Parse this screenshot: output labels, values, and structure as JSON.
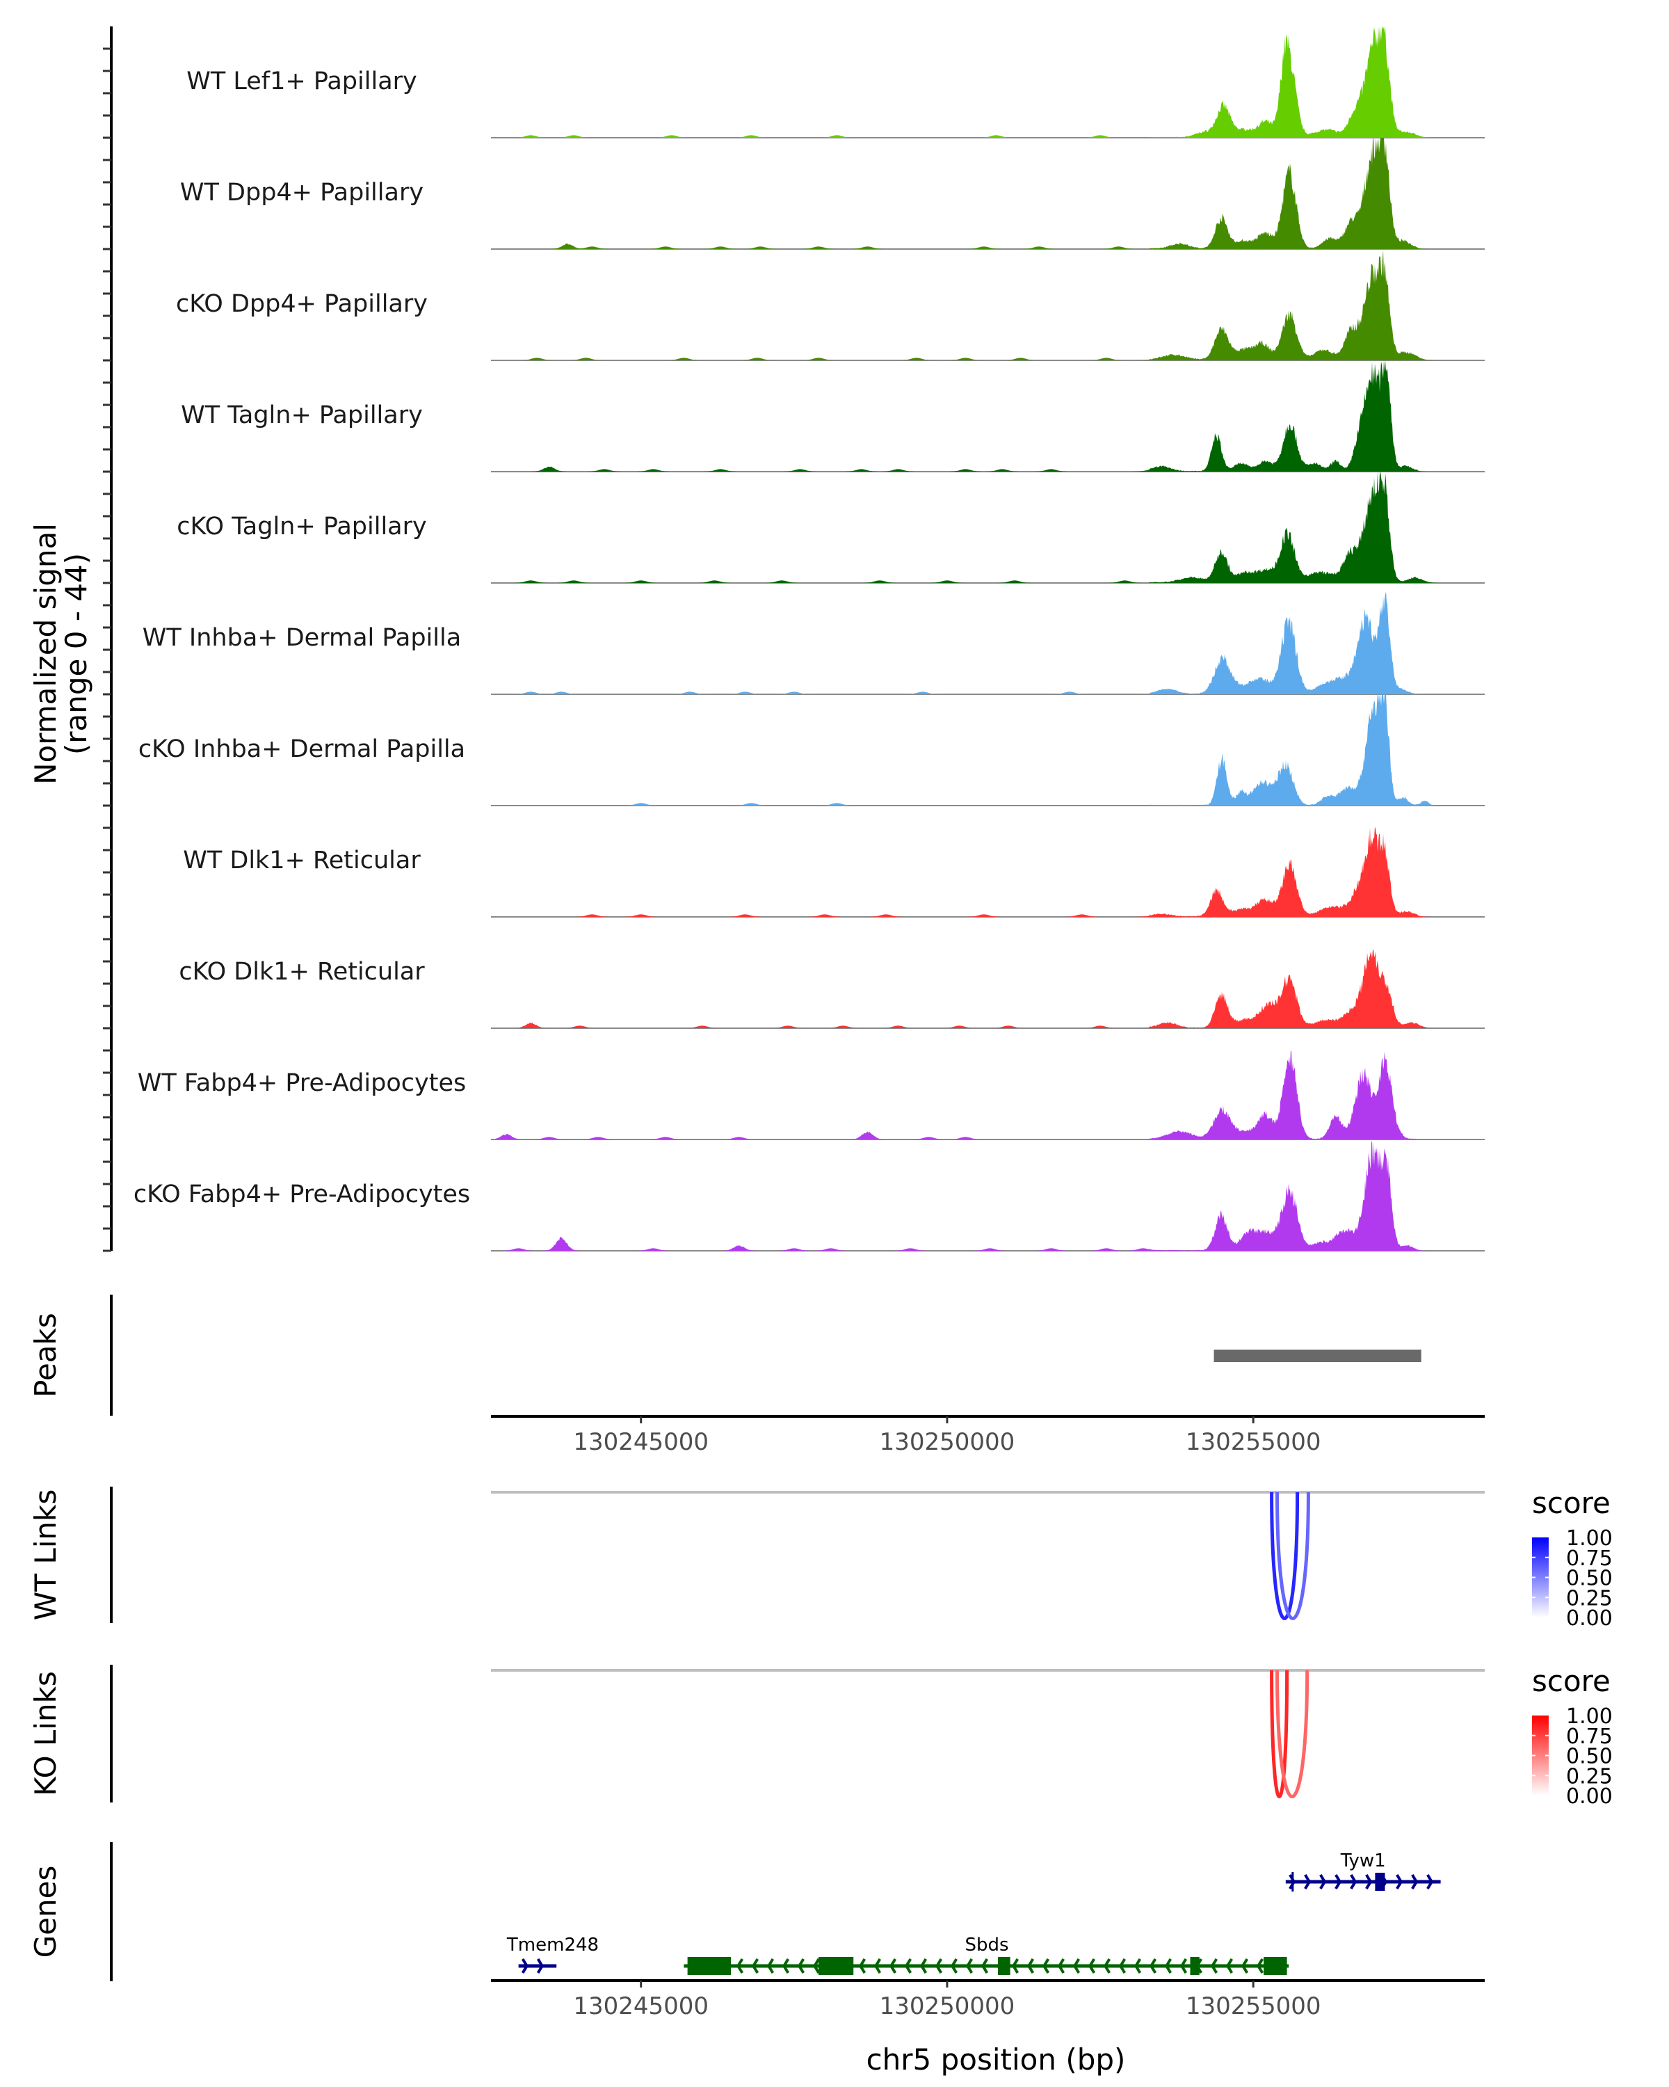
{
  "chart_data": {
    "type": "area",
    "title": "",
    "ylabel": "Normalized signal\n(range 0 - 44)",
    "ylabel_lines": [
      "Normalized signal",
      "(range 0 - 44)"
    ],
    "ylim": [
      0,
      44
    ],
    "xlabel": "chr5 position (bp)",
    "xlim": [
      130242550,
      130258780
    ],
    "x_ticks": [
      130245000,
      130250000,
      130255000
    ],
    "x_tick_labels": [
      "130245000",
      "130250000",
      "130255000"
    ],
    "series": [
      {
        "name": "WT Lef1+ Papillary",
        "color": "#66CD00",
        "peaks": [
          [
            130254200,
            150,
            2
          ],
          [
            130254511,
            110,
            12
          ],
          [
            130254850,
            150,
            3
          ],
          [
            130255200,
            120,
            6
          ],
          [
            130255580,
            110,
            31
          ],
          [
            130255500,
            60,
            10
          ],
          [
            130256200,
            200,
            3
          ],
          [
            130256650,
            100,
            8
          ],
          [
            130256977,
            150,
            36
          ],
          [
            130257150,
            80,
            22
          ],
          [
            130257500,
            150,
            2
          ]
        ],
        "background": [
          [
            130243200,
            1
          ],
          [
            130243900,
            1
          ],
          [
            130245500,
            1
          ],
          [
            130246800,
            1
          ],
          [
            130248200,
            1
          ],
          [
            130250800,
            1
          ],
          [
            130252500,
            1
          ]
        ]
      },
      {
        "name": "WT Dpp4+ Papillary",
        "color": "#458B00",
        "peaks": [
          [
            130253800,
            150,
            2
          ],
          [
            130254480,
            100,
            12
          ],
          [
            130254850,
            150,
            3
          ],
          [
            130255200,
            120,
            6
          ],
          [
            130255590,
            110,
            30
          ],
          [
            130256250,
            120,
            4
          ],
          [
            130256600,
            110,
            10
          ],
          [
            130256960,
            140,
            38
          ],
          [
            130257150,
            80,
            28
          ],
          [
            130257450,
            120,
            3
          ]
        ],
        "background": [
          [
            130243800,
            2
          ],
          [
            130244200,
            1
          ],
          [
            130245400,
            1
          ],
          [
            130246300,
            1
          ],
          [
            130246950,
            1
          ],
          [
            130247900,
            1
          ],
          [
            130248700,
            1
          ],
          [
            130250600,
            1
          ],
          [
            130251500,
            1
          ],
          [
            130252800,
            1
          ]
        ]
      },
      {
        "name": "cKO Dpp4+ Papillary",
        "color": "#458B00",
        "peaks": [
          [
            130253700,
            200,
            2
          ],
          [
            130254480,
            110,
            12
          ],
          [
            130254850,
            150,
            4
          ],
          [
            130255150,
            120,
            6
          ],
          [
            130255590,
            120,
            18
          ],
          [
            130256150,
            150,
            4
          ],
          [
            130256600,
            110,
            11
          ],
          [
            130256950,
            140,
            33
          ],
          [
            130257150,
            80,
            24
          ],
          [
            130257500,
            150,
            3
          ]
        ],
        "background": [
          [
            130243300,
            1
          ],
          [
            130244100,
            1
          ],
          [
            130245700,
            1
          ],
          [
            130246900,
            1
          ],
          [
            130247900,
            1
          ],
          [
            130249500,
            1
          ],
          [
            130250300,
            1
          ],
          [
            130251200,
            1
          ],
          [
            130252600,
            1
          ]
        ]
      },
      {
        "name": "WT Tagln+ Papillary",
        "color": "#006400",
        "peaks": [
          [
            130253500,
            150,
            2
          ],
          [
            130254400,
            80,
            14
          ],
          [
            130254800,
            120,
            3
          ],
          [
            130255200,
            120,
            4
          ],
          [
            130255600,
            110,
            19
          ],
          [
            130256000,
            120,
            3
          ],
          [
            130256350,
            80,
            4
          ],
          [
            130256700,
            80,
            5
          ],
          [
            130256950,
            150,
            38
          ],
          [
            130257180,
            70,
            31
          ],
          [
            130257500,
            100,
            2
          ]
        ],
        "background": [
          [
            130243500,
            2
          ],
          [
            130244400,
            1
          ],
          [
            130245200,
            1
          ],
          [
            130246300,
            1
          ],
          [
            130247600,
            1
          ],
          [
            130248600,
            1
          ],
          [
            130249200,
            1
          ],
          [
            130250300,
            1
          ],
          [
            130250900,
            1
          ],
          [
            130251700,
            1
          ]
        ]
      },
      {
        "name": "cKO Tagln+ Papillary",
        "color": "#006400",
        "peaks": [
          [
            130254000,
            200,
            2
          ],
          [
            130254480,
            100,
            12
          ],
          [
            130254830,
            120,
            3
          ],
          [
            130255200,
            200,
            5
          ],
          [
            130255560,
            110,
            18
          ],
          [
            130256100,
            250,
            4
          ],
          [
            130256600,
            120,
            11
          ],
          [
            130256960,
            140,
            35
          ],
          [
            130257150,
            80,
            25
          ],
          [
            130257650,
            120,
            2
          ]
        ],
        "background": [
          [
            130243200,
            1
          ],
          [
            130243900,
            1
          ],
          [
            130245000,
            1
          ],
          [
            130246200,
            1
          ],
          [
            130247300,
            1
          ],
          [
            130248900,
            1
          ],
          [
            130250000,
            1
          ],
          [
            130251100,
            1
          ],
          [
            130252900,
            1
          ]
        ]
      },
      {
        "name": "WT Inhba+ Dermal Papilla",
        "color": "#5DABEC",
        "peaks": [
          [
            130253600,
            150,
            2
          ],
          [
            130254500,
            130,
            14
          ],
          [
            130254900,
            150,
            3
          ],
          [
            130255150,
            150,
            5
          ],
          [
            130255580,
            120,
            28
          ],
          [
            130256150,
            150,
            3
          ],
          [
            130256500,
            200,
            6
          ],
          [
            130256850,
            130,
            29
          ],
          [
            130257150,
            80,
            36
          ],
          [
            130257400,
            100,
            2
          ]
        ],
        "background": [
          [
            130243200,
            1
          ],
          [
            130243700,
            1
          ],
          [
            130245800,
            1
          ],
          [
            130246700,
            1
          ],
          [
            130247500,
            1
          ],
          [
            130249600,
            1
          ],
          [
            130252000,
            1
          ]
        ]
      },
      {
        "name": "cKO Inhba+ Dermal Papilla",
        "color": "#5DABEC",
        "peaks": [
          [
            130254490,
            80,
            18
          ],
          [
            130254800,
            80,
            5
          ],
          [
            130255150,
            150,
            9
          ],
          [
            130255530,
            120,
            16
          ],
          [
            130256200,
            100,
            3
          ],
          [
            130256550,
            150,
            7
          ],
          [
            130256960,
            120,
            38
          ],
          [
            130257150,
            70,
            34
          ],
          [
            130257450,
            80,
            3
          ],
          [
            130257800,
            60,
            2
          ]
        ],
        "background": [
          [
            130245000,
            1
          ],
          [
            130246800,
            1
          ],
          [
            130248200,
            1
          ]
        ]
      },
      {
        "name": "WT Dlk1+ Reticular",
        "color": "#FF3333",
        "peaks": [
          [
            130253500,
            150,
            1
          ],
          [
            130254400,
            100,
            10
          ],
          [
            130254850,
            200,
            3
          ],
          [
            130255200,
            120,
            6
          ],
          [
            130255590,
            120,
            20
          ],
          [
            130256300,
            200,
            4
          ],
          [
            130256700,
            120,
            8
          ],
          [
            130256940,
            120,
            30
          ],
          [
            130257150,
            80,
            21
          ],
          [
            130257500,
            120,
            2
          ]
        ],
        "background": [
          [
            130244200,
            1
          ],
          [
            130245000,
            1
          ],
          [
            130246700,
            1
          ],
          [
            130248000,
            1
          ],
          [
            130249000,
            1
          ],
          [
            130250600,
            1
          ],
          [
            130252200,
            1
          ]
        ]
      },
      {
        "name": "cKO Dlk1+ Reticular",
        "color": "#FF3333",
        "peaks": [
          [
            130253600,
            150,
            2
          ],
          [
            130254480,
            100,
            13
          ],
          [
            130254850,
            150,
            3
          ],
          [
            130255250,
            150,
            9
          ],
          [
            130255590,
            120,
            19
          ],
          [
            130256200,
            200,
            3
          ],
          [
            130256650,
            150,
            7
          ],
          [
            130256930,
            120,
            29
          ],
          [
            130257180,
            100,
            14
          ],
          [
            130257600,
            120,
            2
          ]
        ],
        "background": [
          [
            130243200,
            2
          ],
          [
            130244000,
            1
          ],
          [
            130246000,
            1
          ],
          [
            130247400,
            1
          ],
          [
            130248300,
            1
          ],
          [
            130249200,
            1
          ],
          [
            130250200,
            1
          ],
          [
            130251000,
            1
          ],
          [
            130252500,
            1
          ]
        ]
      },
      {
        "name": "WT Fabp4+ Pre-Adipocytes",
        "color": "#B23AEE",
        "peaks": [
          [
            130253800,
            200,
            3
          ],
          [
            130254480,
            130,
            11
          ],
          [
            130254850,
            200,
            3
          ],
          [
            130255200,
            120,
            9
          ],
          [
            130255600,
            110,
            33
          ],
          [
            130256350,
            100,
            9
          ],
          [
            130256800,
            130,
            26
          ],
          [
            130257150,
            100,
            30
          ],
          [
            130257300,
            100,
            3
          ]
        ],
        "background": [
          [
            130242800,
            2
          ],
          [
            130243500,
            1
          ],
          [
            130244300,
            1
          ],
          [
            130245400,
            1
          ],
          [
            130246600,
            1
          ],
          [
            130248700,
            3
          ],
          [
            130249700,
            1
          ],
          [
            130250300,
            1
          ]
        ]
      },
      {
        "name": "cKO Fabp4+ Pre-Adipocytes",
        "color": "#B23AEE",
        "peaks": [
          [
            130254480,
            100,
            14
          ],
          [
            130254900,
            120,
            5
          ],
          [
            130255200,
            200,
            7
          ],
          [
            130255600,
            120,
            23
          ],
          [
            130256100,
            150,
            3
          ],
          [
            130256500,
            150,
            8
          ],
          [
            130256950,
            130,
            38
          ],
          [
            130257180,
            80,
            28
          ],
          [
            130257500,
            100,
            2
          ]
        ],
        "background": [
          [
            130243000,
            1
          ],
          [
            130243700,
            5
          ],
          [
            130245200,
            1
          ],
          [
            130246600,
            2
          ],
          [
            130247500,
            1
          ],
          [
            130248100,
            1
          ],
          [
            130249400,
            1
          ],
          [
            130250700,
            1
          ],
          [
            130251700,
            1
          ],
          [
            130252600,
            1
          ],
          [
            130253200,
            1
          ]
        ]
      }
    ],
    "peaks_track": {
      "label": "Peaks",
      "regions": [
        [
          130254357,
          130257743
        ]
      ],
      "color": "#696969"
    },
    "links_tracks": [
      {
        "label": "WT Links",
        "links": [
          [
            130255300,
            130255720,
            0.85
          ],
          [
            130255390,
            130255900,
            0.6
          ]
        ],
        "legend": {
          "title": "score",
          "ticks": [
            "1.00",
            "0.75",
            "0.50",
            "0.25",
            "0.00"
          ],
          "low": "#ffffff",
          "high": "#0000ff"
        }
      },
      {
        "label": "KO Links",
        "links": [
          [
            130255300,
            130255550,
            0.85
          ],
          [
            130255390,
            130255880,
            0.6
          ]
        ],
        "legend": {
          "title": "score",
          "ticks": [
            "1.00",
            "0.75",
            "0.50",
            "0.25",
            "0.00"
          ],
          "low": "#ffffff",
          "high": "#ff0000"
        }
      }
    ],
    "genes_track": {
      "label": "Genes",
      "genes": [
        {
          "name": "Tmem248",
          "strand": "+",
          "start": 130243000,
          "end": 130243620,
          "exons": [],
          "color": "#00008B",
          "row": 2
        },
        {
          "name": "Sbds",
          "strand": "-",
          "start": 130245700,
          "end": 130255580,
          "exons": [
            [
              130245760,
              130246470
            ],
            [
              130247900,
              130248470
            ],
            [
              130250830,
              130251030
            ],
            [
              130253970,
              130254120
            ],
            [
              130255170,
              130255550
            ]
          ],
          "color": "#006400",
          "row": 2
        },
        {
          "name": "Tyw1",
          "strand": "+",
          "start": 130255530,
          "end": 130258060,
          "exons": [
            [
              130256990,
              130257150
            ]
          ],
          "color": "#00008B",
          "row": 1
        }
      ]
    }
  }
}
